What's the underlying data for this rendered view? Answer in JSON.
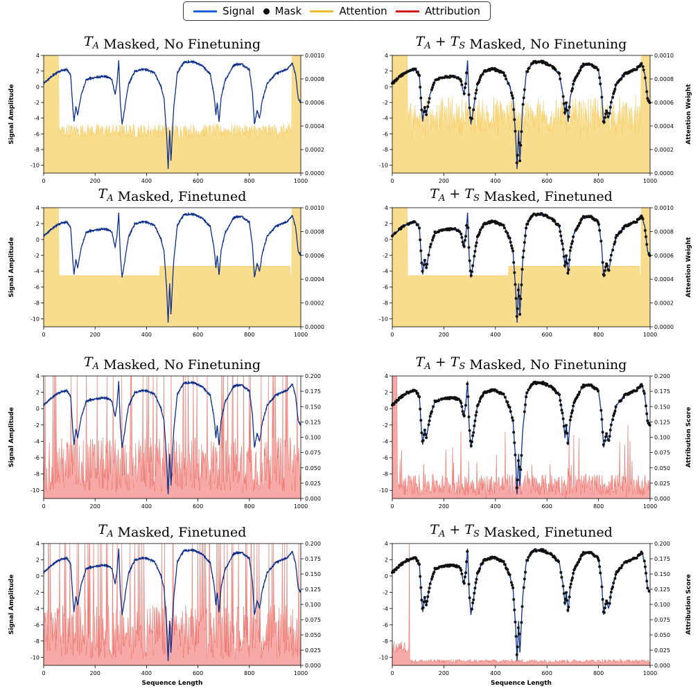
{
  "legend": {
    "signal": "Signal",
    "mask": "Mask",
    "attention": "Attention",
    "attribution": "Attribution"
  },
  "colors": {
    "signal": "#0b2d8a",
    "signal_legend": "#1f62d6",
    "mask": "#111111",
    "attention": "#f7d77b",
    "attention_line": "#f2b92c",
    "attribution": "#f59a96",
    "attribution_line": "#e03a2e"
  },
  "chart_data": {
    "type": "line",
    "x_range": [
      0,
      1000
    ],
    "x_ticks": [
      "0",
      "200",
      "400",
      "600",
      "800",
      "1000"
    ],
    "signal_ylim": [
      -11,
      4
    ],
    "signal_ticks": [
      "4",
      "2",
      "0",
      "-2",
      "-4",
      "-6",
      "-8",
      "-10"
    ],
    "signal_keypoints": [
      {
        "x": 0,
        "y": 0.4
      },
      {
        "x": 30,
        "y": 1.3
      },
      {
        "x": 60,
        "y": 2.0
      },
      {
        "x": 90,
        "y": 2.2
      },
      {
        "x": 105,
        "y": 1.5
      },
      {
        "x": 112,
        "y": -2.0
      },
      {
        "x": 118,
        "y": -4.5
      },
      {
        "x": 125,
        "y": -2.5
      },
      {
        "x": 132,
        "y": -3.6
      },
      {
        "x": 145,
        "y": -1.2
      },
      {
        "x": 165,
        "y": 0.9
      },
      {
        "x": 200,
        "y": 1.2
      },
      {
        "x": 240,
        "y": 1.3
      },
      {
        "x": 265,
        "y": 1.0
      },
      {
        "x": 278,
        "y": -1.0
      },
      {
        "x": 285,
        "y": 0.5
      },
      {
        "x": 292,
        "y": 3.3
      },
      {
        "x": 298,
        "y": -2.0
      },
      {
        "x": 305,
        "y": -4.8
      },
      {
        "x": 315,
        "y": -2.8
      },
      {
        "x": 330,
        "y": 0.3
      },
      {
        "x": 355,
        "y": 2.0
      },
      {
        "x": 390,
        "y": 2.3
      },
      {
        "x": 430,
        "y": 1.8
      },
      {
        "x": 455,
        "y": 0.2
      },
      {
        "x": 468,
        "y": -1.5
      },
      {
        "x": 478,
        "y": -6.0
      },
      {
        "x": 484,
        "y": -10.5
      },
      {
        "x": 490,
        "y": -5.5
      },
      {
        "x": 495,
        "y": -9.5
      },
      {
        "x": 505,
        "y": -3.0
      },
      {
        "x": 520,
        "y": 1.8
      },
      {
        "x": 545,
        "y": 3.1
      },
      {
        "x": 580,
        "y": 3.2
      },
      {
        "x": 620,
        "y": 2.6
      },
      {
        "x": 648,
        "y": 1.6
      },
      {
        "x": 662,
        "y": -1.0
      },
      {
        "x": 670,
        "y": -3.5
      },
      {
        "x": 675,
        "y": -2.0
      },
      {
        "x": 682,
        "y": -4.5
      },
      {
        "x": 690,
        "y": -1.5
      },
      {
        "x": 705,
        "y": 0.8
      },
      {
        "x": 740,
        "y": 2.8
      },
      {
        "x": 770,
        "y": 2.9
      },
      {
        "x": 800,
        "y": 2.2
      },
      {
        "x": 812,
        "y": -0.8
      },
      {
        "x": 820,
        "y": -4.8
      },
      {
        "x": 830,
        "y": -3.0
      },
      {
        "x": 840,
        "y": -4.0
      },
      {
        "x": 850,
        "y": -1.8
      },
      {
        "x": 870,
        "y": 0.5
      },
      {
        "x": 905,
        "y": 1.7
      },
      {
        "x": 945,
        "y": 2.2
      },
      {
        "x": 968,
        "y": 3.0
      },
      {
        "x": 980,
        "y": 1.5
      },
      {
        "x": 990,
        "y": -1.5
      },
      {
        "x": 1000,
        "y": -2.0
      }
    ],
    "panels": [
      {
        "title_math": "TA",
        "title_text": "Masked, No Finetuning",
        "overlay": "attention",
        "masked": false,
        "finetuned": false,
        "ylabel": "Signal Amplitude",
        "y2label": "",
        "y2lim": [
          0,
          0.001
        ],
        "y2_ticks": [
          "0.0000",
          "0.0002",
          "0.0004",
          "0.0006",
          "0.0008",
          "0.0010"
        ],
        "xlabel": ""
      },
      {
        "title_math": "TA+TS",
        "title_text": "Masked, No Finetuning",
        "overlay": "attention",
        "masked": true,
        "finetuned": false,
        "ylabel": "",
        "y2label": "Attention Weight",
        "y2lim": [
          0,
          0.001
        ],
        "y2_ticks": [
          "0.0000",
          "0.0002",
          "0.0004",
          "0.0006",
          "0.0008",
          "0.0010"
        ],
        "xlabel": ""
      },
      {
        "title_math": "TA",
        "title_text": "Masked, Finetuned",
        "overlay": "attention",
        "masked": false,
        "finetuned": true,
        "ylabel": "Signal Amplitude",
        "y2label": "",
        "y2lim": [
          0,
          0.001
        ],
        "y2_ticks": [
          "0.0000",
          "0.0002",
          "0.0004",
          "0.0006",
          "0.0008",
          "0.0010"
        ],
        "xlabel": ""
      },
      {
        "title_math": "TA+TS",
        "title_text": "Masked, Finetuned",
        "overlay": "attention",
        "masked": true,
        "finetuned": true,
        "ylabel": "",
        "y2label": "Attention Weight",
        "y2lim": [
          0,
          0.001
        ],
        "y2_ticks": [
          "0.0000",
          "0.0002",
          "0.0004",
          "0.0006",
          "0.0008",
          "0.0010"
        ],
        "xlabel": ""
      },
      {
        "title_math": "TA",
        "title_text": "Masked, No Finetuning",
        "overlay": "attribution",
        "masked": false,
        "finetuned": false,
        "ylabel": "Signal Amplitude",
        "y2label": "",
        "y2lim": [
          0,
          0.2
        ],
        "y2_ticks": [
          "0.000",
          "0.025",
          "0.050",
          "0.075",
          "0.100",
          "0.125",
          "0.150",
          "0.175",
          "0.200"
        ],
        "xlabel": ""
      },
      {
        "title_math": "TA+TS",
        "title_text": "Masked, No Finetuning",
        "overlay": "attribution",
        "masked": true,
        "finetuned": false,
        "ylabel": "",
        "y2label": "Attribution Score",
        "y2lim": [
          0,
          0.2
        ],
        "y2_ticks": [
          "0.000",
          "0.025",
          "0.050",
          "0.075",
          "0.100",
          "0.125",
          "0.150",
          "0.175",
          "0.200"
        ],
        "xlabel": ""
      },
      {
        "title_math": "TA",
        "title_text": "Masked, Finetuned",
        "overlay": "attribution",
        "masked": false,
        "finetuned": true,
        "ylabel": "Signal Amplitude",
        "y2label": "",
        "y2lim": [
          0,
          0.2
        ],
        "y2_ticks": [
          "0.000",
          "0.025",
          "0.050",
          "0.075",
          "0.100",
          "0.125",
          "0.150",
          "0.175",
          "0.200"
        ],
        "xlabel": "Sequence Length"
      },
      {
        "title_math": "TA+TS",
        "title_text": "Masked, Finetuned",
        "overlay": "attribution",
        "masked": true,
        "finetuned": true,
        "ylabel": "",
        "y2label": "Attribution Score",
        "y2lim": [
          0,
          0.2
        ],
        "y2_ticks": [
          "0.000",
          "0.025",
          "0.050",
          "0.075",
          "0.100",
          "0.125",
          "0.150",
          "0.175",
          "0.200"
        ],
        "xlabel": "Sequence Length"
      }
    ]
  }
}
